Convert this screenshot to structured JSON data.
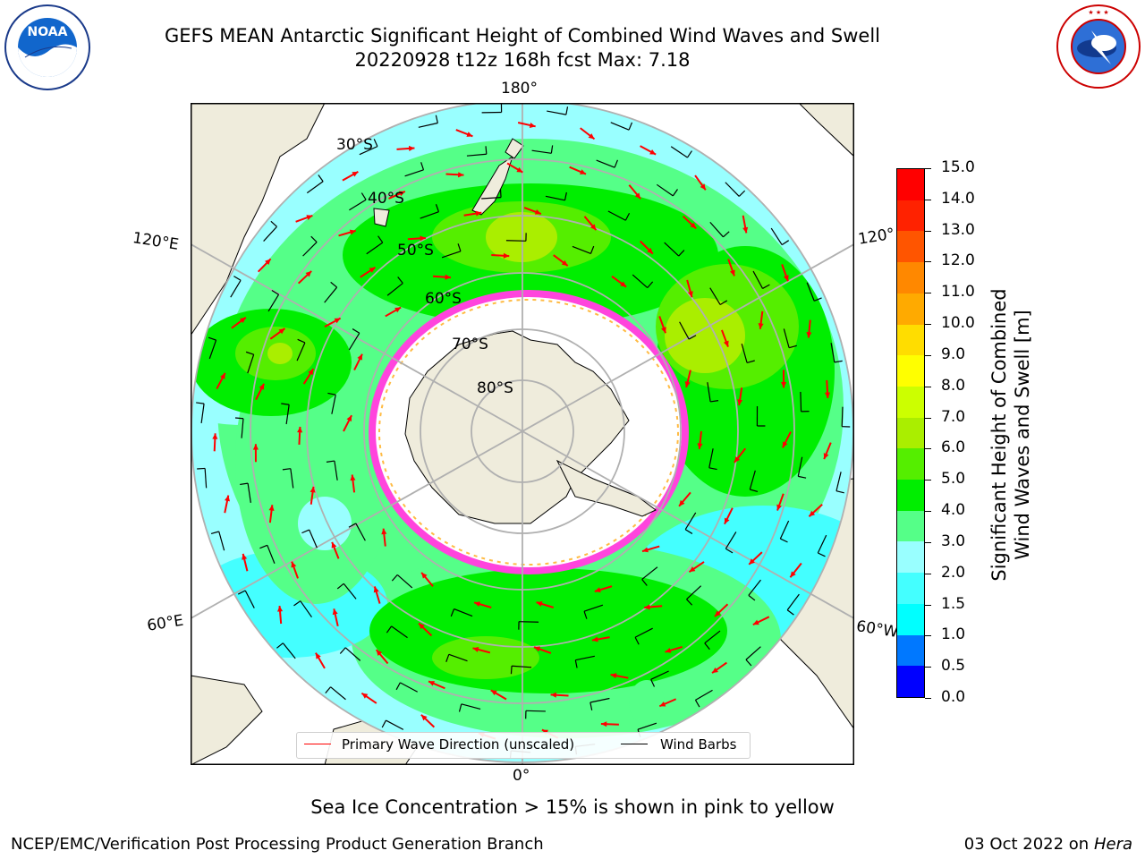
{
  "header": {
    "title_line1": "GEFS MEAN Antarctic Significant Height of Combined Wind Waves and Swell",
    "title_line2": "20220928 t12z 168h fcst   Max: 7.18"
  },
  "logos": {
    "left": {
      "name": "noaa-logo",
      "text": "NOAA",
      "ring_text": "NATIONAL OCEANIC AND ATMOSPHERIC ADMINISTRATION · U.S. DEPARTMENT OF COMMERCE"
    },
    "right": {
      "name": "nws-logo",
      "ring_text": "NATIONAL WEATHER SERVICE"
    }
  },
  "map": {
    "projection": "south-polar-stereographic",
    "longitude_labels": {
      "top": "180°",
      "bottom": "0°",
      "left_upper": "120°E",
      "left_lower": "60°E",
      "right_upper": "120°",
      "right_lower": "60°W"
    },
    "latitude_labels": [
      "30°S",
      "40°S",
      "50°S",
      "60°S",
      "70°S",
      "80°S"
    ]
  },
  "legend": {
    "wave_label": "Primary Wave Direction (unscaled)",
    "barb_label": "Wind Barbs",
    "wave_color": "#ff0000",
    "barb_color": "#000000"
  },
  "colorbar": {
    "label_line1": "Significant Height of Combined",
    "label_line2": "Wind Waves and Swell [m]",
    "ticks": [
      "0.0",
      "0.5",
      "1.0",
      "1.5",
      "2.0",
      "3.0",
      "4.0",
      "5.0",
      "6.0",
      "7.0",
      "8.0",
      "9.0",
      "10.0",
      "11.0",
      "12.0",
      "13.0",
      "14.0",
      "15.0"
    ],
    "colors": [
      "#0000ff",
      "#0078ff",
      "#00ffff",
      "#44ffff",
      "#99ffff",
      "#55ff88",
      "#00ee00",
      "#55ee00",
      "#aaee00",
      "#ccff00",
      "#ffff00",
      "#ffdd00",
      "#ffaa00",
      "#ff8800",
      "#ff5500",
      "#ff2200",
      "#ff0000"
    ]
  },
  "notes": {
    "ice": "Sea Ice Concentration > 15% is shown in pink to yellow"
  },
  "footer": {
    "left": "NCEP/EMC/Verification Post Processing Product Generation Branch",
    "date": "03 Oct 2022 on ",
    "machine": "Hera"
  }
}
